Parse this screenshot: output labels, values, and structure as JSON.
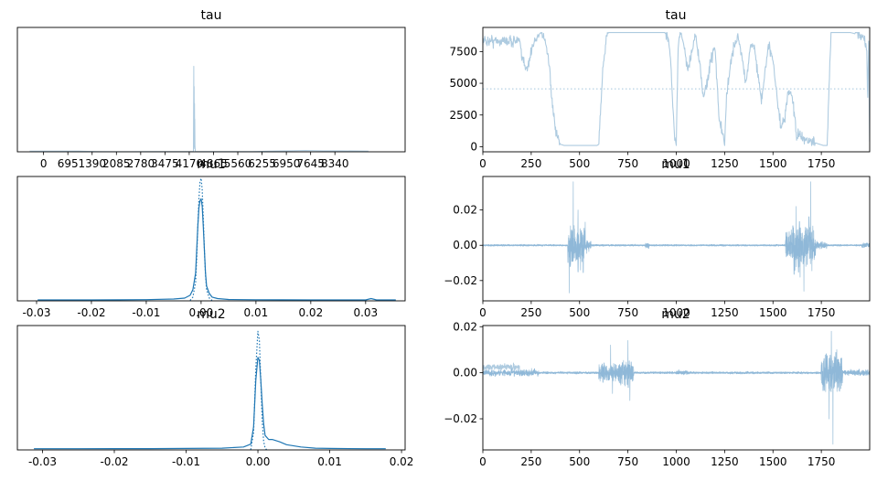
{
  "chart_data": [
    {
      "type": "line",
      "panel": "tau-density",
      "title": "tau",
      "xlabel": "",
      "ylabel": "",
      "x_ticks": [
        "0",
        "695",
        "1390",
        "2085",
        "2780",
        "3475",
        "4170",
        "4865",
        "5560",
        "6255",
        "6950",
        "7645",
        "8340"
      ],
      "xlim": [
        -750,
        10350
      ],
      "y_ticks": [],
      "series": [
        {
          "style": "solid",
          "color": "#aecbe0",
          "x": [
            -400,
            600,
            1000,
            1500,
            2000,
            2500,
            3000,
            3500,
            4000,
            4290,
            4300,
            4305,
            4310,
            4315,
            4320,
            4325,
            4330,
            4335,
            4345,
            4500,
            5000,
            5500,
            6000,
            6500,
            7000,
            7500,
            8000,
            8500,
            9300
          ],
          "y": [
            0.004,
            0.005,
            0.004,
            0.001,
            0.0005,
            0.0005,
            0.001,
            0.001,
            0.002,
            0.002,
            0.55,
            0.02,
            0.42,
            0.03,
            0.31,
            0.04,
            0.21,
            0.04,
            0.002,
            0.002,
            0.001,
            0.001,
            0.002,
            0.004,
            0.006,
            0.008,
            0.006,
            0.006,
            0.005
          ]
        }
      ],
      "ylim": [
        0,
        0.8
      ]
    },
    {
      "type": "line",
      "panel": "tau-trace",
      "title": "tau",
      "x_ticks": [
        0,
        250,
        500,
        750,
        1000,
        1250,
        1500,
        1750
      ],
      "y_ticks": [
        0,
        2500,
        5000,
        7500
      ],
      "xlim": [
        0,
        2000
      ],
      "ylim": [
        -400,
        9400
      ],
      "hline": 4560,
      "trace_segments": [
        {
          "x": [
            0,
            190,
            200,
            230,
            260,
            280,
            300,
            320,
            340,
            350,
            360,
            370,
            380,
            390,
            400,
            420,
            440,
            460,
            470,
            480,
            520,
            560,
            590,
            600
          ],
          "y": [
            8350,
            8350,
            7000,
            6200,
            8000,
            8700,
            9000,
            8500,
            7000,
            5000,
            3000,
            2000,
            1000,
            600,
            200,
            100,
            100,
            100,
            100,
            100,
            100,
            100,
            100,
            200
          ]
        },
        {
          "x": [
            600,
            620,
            640,
            650,
            660,
            670,
            700,
            750,
            800,
            850,
            880,
            900,
            920,
            940,
            960
          ],
          "y": [
            200,
            6000,
            8800,
            9000,
            9000,
            9000,
            9000,
            9000,
            9000,
            9000,
            9000,
            9000,
            9000,
            9000,
            8600
          ]
        },
        {
          "x": [
            960,
            970,
            980,
            990,
            1000,
            1010,
            1020,
            1040,
            1060,
            1080,
            1100,
            1120,
            1140,
            1160,
            1180,
            1200,
            1220,
            1240,
            1250,
            1260,
            1280,
            1300,
            1320,
            1340,
            1360,
            1380,
            1400,
            1420,
            1440,
            1460,
            1480,
            1500,
            1520,
            1540,
            1560,
            1580,
            1600,
            1610,
            1620,
            1640,
            1660,
            1680,
            1700,
            1720,
            1740,
            1760,
            1780,
            1800,
            1850,
            1900,
            1950,
            1970,
            1980,
            1985,
            1990,
            1995,
            2000
          ],
          "y": [
            8600,
            7000,
            4000,
            1000,
            100,
            8000,
            9000,
            8000,
            6000,
            7500,
            8800,
            6500,
            4000,
            5000,
            7000,
            8000,
            2500,
            900,
            100,
            4000,
            6500,
            8000,
            8700,
            7000,
            5000,
            7500,
            8200,
            6000,
            3500,
            6000,
            8000,
            7000,
            4000,
            1500,
            2000,
            4500,
            4000,
            2500,
            1000,
            800,
            600,
            500,
            400,
            300,
            200,
            100,
            100,
            9000,
            9000,
            9000,
            8800,
            8400,
            8200,
            7500,
            4000,
            8500,
            400
          ]
        }
      ]
    },
    {
      "type": "line",
      "panel": "mu1-density",
      "title": "mu1",
      "x_ticks": [
        "-0.03",
        "-0.02",
        "-0.01",
        "0.00",
        "0.01",
        "0.02",
        "0.03"
      ],
      "xlim": [
        -0.0335,
        0.0372
      ],
      "y_ticks": [],
      "ylim": [
        0,
        134
      ],
      "series": [
        {
          "style": "solid",
          "color": "#1f77b4",
          "x": [
            -0.0298,
            -0.025,
            -0.02,
            -0.015,
            -0.01,
            -0.005,
            -0.003,
            -0.002,
            -0.0015,
            -0.001,
            -0.0008,
            -0.0006,
            -0.0004,
            -0.0002,
            0.0,
            0.0002,
            0.0004,
            0.0006,
            0.0008,
            0.001,
            0.0015,
            0.002,
            0.003,
            0.005,
            0.01,
            0.015,
            0.02,
            0.025,
            0.03,
            0.031,
            0.032,
            0.0355
          ],
          "y": [
            1,
            1,
            1,
            1.1,
            1.3,
            2,
            3,
            6,
            12,
            30,
            55,
            80,
            100,
            108,
            110,
            102,
            80,
            55,
            30,
            16,
            8,
            4,
            2.5,
            1.5,
            1.2,
            1.1,
            1,
            1,
            1,
            2.5,
            1,
            1
          ]
        },
        {
          "style": "dotted",
          "color": "#1f77b4",
          "x": [
            -0.002,
            -0.0015,
            -0.001,
            -0.0008,
            -0.0006,
            -0.0004,
            -0.0002,
            0.0,
            0.0002,
            0.0004,
            0.0006,
            0.0008,
            0.001,
            0.0015,
            0.002
          ],
          "y": [
            0.5,
            4,
            20,
            45,
            80,
            110,
            128,
            132,
            120,
            90,
            55,
            28,
            12,
            3,
            0.5
          ]
        }
      ]
    },
    {
      "type": "line",
      "panel": "mu1-trace",
      "title": "mu1",
      "x_ticks": [
        0,
        250,
        500,
        750,
        1000,
        1250,
        1500,
        1750
      ],
      "y_ticks": [
        "−0.02",
        "0.00",
        "0.02"
      ],
      "xlim": [
        0,
        2000
      ],
      "ylim": [
        -0.0315,
        0.039
      ],
      "bursts": [
        {
          "start": 440,
          "end": 530,
          "amp": 0.024
        },
        {
          "start": 530,
          "end": 560,
          "amp": 0.007
        },
        {
          "start": 840,
          "end": 860,
          "amp": 0.004
        },
        {
          "start": 1565,
          "end": 1600,
          "amp": 0.016
        },
        {
          "start": 1600,
          "end": 1720,
          "amp": 0.026
        },
        {
          "start": 1720,
          "end": 1780,
          "amp": 0.004
        },
        {
          "start": 1960,
          "end": 2000,
          "amp": 0.003
        }
      ],
      "burst_peaks": [
        {
          "x": 467,
          "y": 0.036
        },
        {
          "x": 447,
          "y": -0.027
        },
        {
          "x": 492,
          "y": 0.02
        },
        {
          "x": 505,
          "y": -0.014
        },
        {
          "x": 1695,
          "y": 0.036
        },
        {
          "x": 1660,
          "y": -0.026
        },
        {
          "x": 1620,
          "y": 0.022
        },
        {
          "x": 1640,
          "y": -0.018
        }
      ]
    },
    {
      "type": "line",
      "panel": "mu2-density",
      "title": "mu2",
      "x_ticks": [
        "-0.03",
        "-0.02",
        "-0.01",
        "0.00",
        "0.01",
        "0.02"
      ],
      "xlim": [
        -0.0335,
        0.0205
      ],
      "y_ticks": [],
      "ylim": [
        0,
        215
      ],
      "series": [
        {
          "style": "solid",
          "color": "#1f77b4",
          "x": [
            -0.0312,
            -0.025,
            -0.02,
            -0.015,
            -0.01,
            -0.005,
            -0.002,
            -0.001,
            -0.0006,
            -0.0003,
            0.0,
            0.0002,
            0.0004,
            0.0006,
            0.0008,
            0.001,
            0.0015,
            0.002,
            0.003,
            0.004,
            0.006,
            0.008,
            0.01,
            0.015,
            0.0178
          ],
          "y": [
            2,
            2,
            2.2,
            2.2,
            2.5,
            3,
            5,
            10,
            40,
            120,
            160,
            155,
            120,
            80,
            45,
            25,
            18,
            18,
            14,
            9,
            5,
            3,
            2.5,
            2,
            2
          ]
        },
        {
          "style": "dotted",
          "color": "#1f77b4",
          "x": [
            -0.001,
            -0.0006,
            -0.0003,
            0.0,
            0.0002,
            0.0004,
            0.0006,
            0.0008,
            0.001,
            0.0012
          ],
          "y": [
            0.5,
            30,
            140,
            205,
            190,
            120,
            50,
            15,
            3,
            0.5
          ]
        }
      ]
    },
    {
      "type": "line",
      "panel": "mu2-trace",
      "title": "mu2",
      "x_ticks": [
        0,
        250,
        500,
        750,
        1000,
        1250,
        1500,
        1750
      ],
      "y_ticks": [
        "−0.02",
        "0.00",
        "0.02"
      ],
      "xlim": [
        0,
        2000
      ],
      "ylim": [
        -0.0335,
        0.0205
      ],
      "bursts": [
        {
          "start": 0,
          "end": 190,
          "amp": 0.003,
          "offset": 0.0025
        },
        {
          "start": 190,
          "end": 290,
          "amp": 0.003
        },
        {
          "start": 600,
          "end": 700,
          "amp": 0.008
        },
        {
          "start": 700,
          "end": 780,
          "amp": 0.012
        },
        {
          "start": 1000,
          "end": 1060,
          "amp": 0.002
        },
        {
          "start": 1750,
          "end": 1860,
          "amp": 0.018
        },
        {
          "start": 1860,
          "end": 2000,
          "amp": 0.0025
        }
      ],
      "burst_peaks": [
        {
          "x": 1802,
          "y": 0.018
        },
        {
          "x": 1810,
          "y": -0.031
        },
        {
          "x": 1790,
          "y": -0.02
        },
        {
          "x": 1830,
          "y": 0.01
        },
        {
          "x": 750,
          "y": 0.014
        },
        {
          "x": 760,
          "y": -0.012
        },
        {
          "x": 660,
          "y": 0.012
        },
        {
          "x": 670,
          "y": -0.009
        }
      ]
    }
  ]
}
